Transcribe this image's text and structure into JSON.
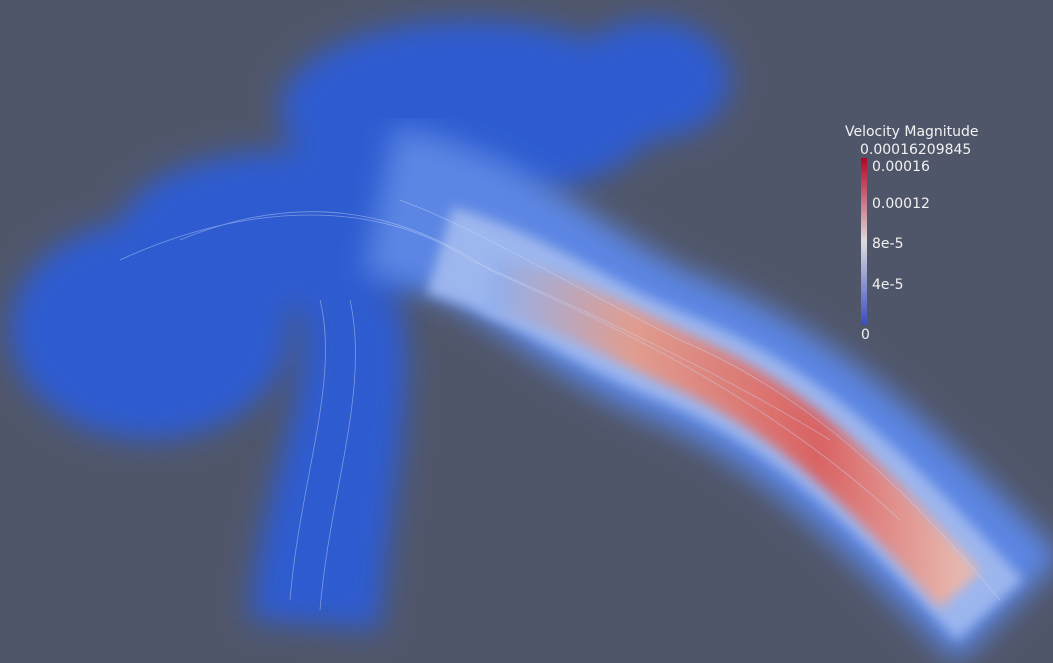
{
  "legend": {
    "title": "Velocity Magnitude",
    "max_label": "0.00016209845",
    "ticks": [
      "0.00016",
      "0.00012",
      "8e-5",
      "4e-5",
      "0"
    ]
  }
}
